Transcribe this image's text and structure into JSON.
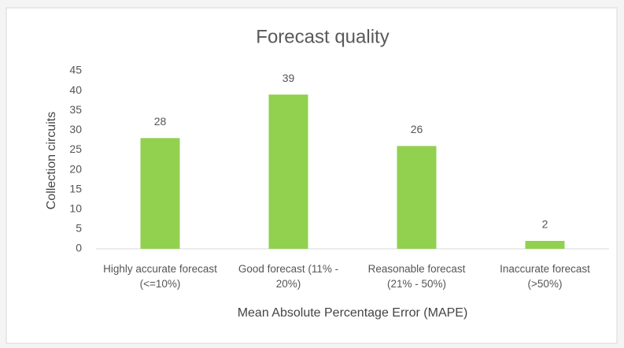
{
  "chart_data": {
    "type": "bar",
    "title": "Forecast quality",
    "x_label": "Mean Absolute Percentage Error (MAPE)",
    "y_label": "Collection circuits",
    "categories": [
      "Highly accurate forecast (<=10%)",
      "Good forecast (11% - 20%)",
      "Reasonable forecast (21% - 50%)",
      "Inaccurate forecast (>50%)"
    ],
    "values": [
      28,
      39,
      26,
      2
    ],
    "color": "#92d050",
    "ylim": [
      0,
      45
    ],
    "yticks": [
      0,
      5,
      10,
      15,
      20,
      25,
      30,
      35,
      40,
      45
    ],
    "grid": false
  }
}
